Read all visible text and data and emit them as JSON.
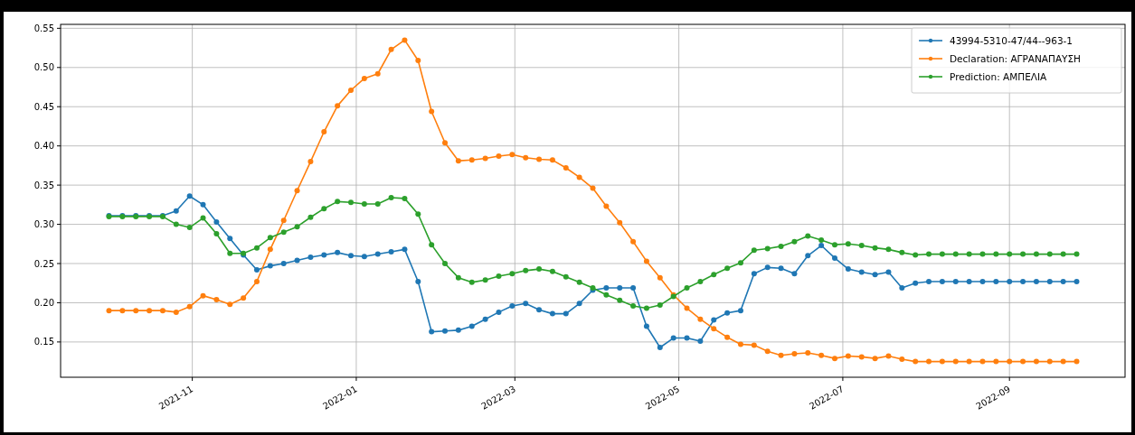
{
  "chart_data": {
    "type": "line",
    "x": [
      "2021-10-01",
      "2021-10-06",
      "2021-10-11",
      "2021-10-16",
      "2021-10-21",
      "2021-10-26",
      "2021-10-31",
      "2021-11-05",
      "2021-11-10",
      "2021-11-15",
      "2021-11-20",
      "2021-11-25",
      "2021-11-30",
      "2021-12-05",
      "2021-12-10",
      "2021-12-15",
      "2021-12-20",
      "2021-12-25",
      "2021-12-30",
      "2022-01-04",
      "2022-01-09",
      "2022-01-14",
      "2022-01-19",
      "2022-01-24",
      "2022-01-29",
      "2022-02-03",
      "2022-02-08",
      "2022-02-13",
      "2022-02-18",
      "2022-02-23",
      "2022-02-28",
      "2022-03-05",
      "2022-03-10",
      "2022-03-15",
      "2022-03-20",
      "2022-03-25",
      "2022-03-30",
      "2022-04-04",
      "2022-04-09",
      "2022-04-14",
      "2022-04-19",
      "2022-04-24",
      "2022-04-29",
      "2022-05-04",
      "2022-05-09",
      "2022-05-14",
      "2022-05-19",
      "2022-05-24",
      "2022-05-29",
      "2022-06-03",
      "2022-06-08",
      "2022-06-13",
      "2022-06-18",
      "2022-06-23",
      "2022-06-28",
      "2022-07-03",
      "2022-07-08",
      "2022-07-13",
      "2022-07-18",
      "2022-07-23",
      "2022-07-28",
      "2022-08-02",
      "2022-08-07",
      "2022-08-12",
      "2022-08-17",
      "2022-08-22",
      "2022-08-27",
      "2022-09-01",
      "2022-09-06",
      "2022-09-11",
      "2022-09-16",
      "2022-09-21",
      "2022-09-26"
    ],
    "series": [
      {
        "name": "43994-5310-47/44--963-1",
        "color": "#1f77b4",
        "values": [
          0.311,
          0.311,
          0.311,
          0.311,
          0.311,
          0.317,
          0.336,
          0.325,
          0.303,
          0.282,
          0.261,
          0.242,
          0.247,
          0.25,
          0.254,
          0.258,
          0.261,
          0.264,
          0.26,
          0.259,
          0.262,
          0.265,
          0.268,
          0.227,
          0.163,
          0.164,
          0.165,
          0.17,
          0.179,
          0.188,
          0.196,
          0.199,
          0.191,
          0.186,
          0.186,
          0.199,
          0.216,
          0.219,
          0.219,
          0.219,
          0.17,
          0.143,
          0.155,
          0.155,
          0.151,
          0.178,
          0.187,
          0.19,
          0.237,
          0.245,
          0.244,
          0.237,
          0.26,
          0.273,
          0.257,
          0.243,
          0.239,
          0.236,
          0.239,
          0.219,
          0.225,
          0.227,
          0.227,
          0.227,
          0.227,
          0.227,
          0.227,
          0.227,
          0.227,
          0.227,
          0.227,
          0.227,
          0.227
        ]
      },
      {
        "name": "Declaration: ΑΓΡΑΝΑΠΑΥΣΗ",
        "color": "#ff7f0e",
        "values": [
          0.19,
          0.19,
          0.19,
          0.19,
          0.19,
          0.188,
          0.195,
          0.209,
          0.204,
          0.198,
          0.206,
          0.227,
          0.268,
          0.305,
          0.343,
          0.38,
          0.418,
          0.451,
          0.471,
          0.486,
          0.492,
          0.523,
          0.535,
          0.509,
          0.444,
          0.404,
          0.381,
          0.382,
          0.384,
          0.387,
          0.389,
          0.385,
          0.383,
          0.382,
          0.372,
          0.36,
          0.346,
          0.323,
          0.302,
          0.278,
          0.253,
          0.232,
          0.21,
          0.193,
          0.179,
          0.167,
          0.156,
          0.147,
          0.146,
          0.138,
          0.133,
          0.135,
          0.136,
          0.133,
          0.129,
          0.132,
          0.131,
          0.129,
          0.132,
          0.128,
          0.125,
          0.125,
          0.125,
          0.125,
          0.125,
          0.125,
          0.125,
          0.125,
          0.125,
          0.125,
          0.125,
          0.125,
          0.125
        ]
      },
      {
        "name": "Prediction: ΑΜΠΕΛΙΑ",
        "color": "#2ca02c",
        "values": [
          0.31,
          0.31,
          0.31,
          0.31,
          0.31,
          0.3,
          0.296,
          0.308,
          0.288,
          0.263,
          0.263,
          0.27,
          0.283,
          0.29,
          0.297,
          0.309,
          0.32,
          0.329,
          0.328,
          0.326,
          0.326,
          0.334,
          0.333,
          0.313,
          0.274,
          0.25,
          0.232,
          0.226,
          0.229,
          0.234,
          0.237,
          0.241,
          0.243,
          0.24,
          0.233,
          0.226,
          0.219,
          0.21,
          0.203,
          0.196,
          0.193,
          0.197,
          0.208,
          0.219,
          0.227,
          0.236,
          0.244,
          0.251,
          0.267,
          0.269,
          0.272,
          0.278,
          0.285,
          0.28,
          0.274,
          0.275,
          0.273,
          0.27,
          0.268,
          0.264,
          0.261,
          0.262,
          0.262,
          0.262,
          0.262,
          0.262,
          0.262,
          0.262,
          0.262,
          0.262,
          0.262,
          0.262,
          0.262
        ]
      }
    ],
    "xlim": [
      "2021-09-13",
      "2022-10-14"
    ],
    "xticks": [
      "2021-11",
      "2022-01",
      "2022-03",
      "2022-05",
      "2022-07",
      "2022-09"
    ],
    "ylim": [
      0.105,
      0.555
    ],
    "yticks": [
      {
        "value": 0.15,
        "label": "0.15"
      },
      {
        "value": 0.2,
        "label": "0.20"
      },
      {
        "value": 0.25,
        "label": "0.25"
      },
      {
        "value": 0.3,
        "label": "0.30"
      },
      {
        "value": 0.35,
        "label": "0.35"
      },
      {
        "value": 0.4,
        "label": "0.40"
      },
      {
        "value": 0.45,
        "label": "0.45"
      },
      {
        "value": 0.5,
        "label": "0.50"
      },
      {
        "value": 0.55,
        "label": "0.55"
      }
    ],
    "grid": true,
    "legend": "top right",
    "marker": "circle",
    "line_style": "solid"
  }
}
